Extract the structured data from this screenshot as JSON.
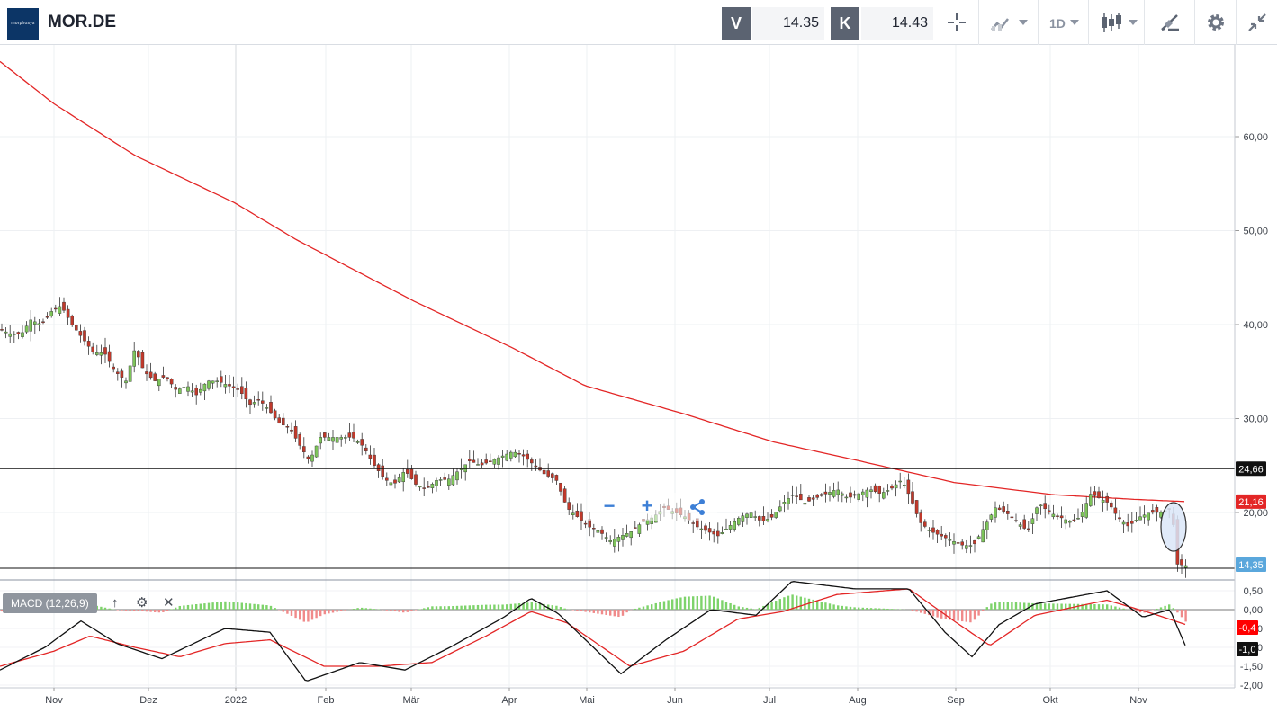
{
  "toolbar": {
    "logo_text": "morphosys",
    "symbol": "MOR.DE",
    "bid_label": "V",
    "bid_value": "14.35",
    "ask_label": "K",
    "ask_value": "14.43",
    "interval_label": "1D",
    "icons": [
      "crosshair-icon",
      "chart-type-icon",
      "candlestick-icon",
      "drawing-icon",
      "gear-icon",
      "collapse-icon"
    ]
  },
  "macd_panel": {
    "label": "MACD (12,26,9)",
    "icons": [
      "arrow-up-icon",
      "gear-icon",
      "close-icon"
    ],
    "axis_ticks": [
      "0,50",
      "0,00",
      "-0,50",
      "-1,00",
      "-1,50",
      "-2,00"
    ],
    "macd_label": "-1,0",
    "signal_label": "-0,4"
  },
  "chart_data": {
    "type": "candlestick",
    "symbol": "MOR.DE",
    "ylim": [
      10.5,
      69
    ],
    "y_ticks": [
      "30,00",
      "40,00",
      "50,00",
      "60,00",
      "20,00"
    ],
    "x_ticks": [
      "Nov",
      "Dez",
      "2022",
      "Feb",
      "Mär",
      "Apr",
      "Mai",
      "Jun",
      "Jul",
      "Aug",
      "Sep",
      "Okt",
      "Nov"
    ],
    "horizontal_lines": [
      {
        "value": 24.66,
        "label": "24,66"
      },
      {
        "value": 14.0,
        "label": ""
      }
    ],
    "ma_label": "21,16",
    "last_price_label": "14,35",
    "colors": {
      "up": "#7dc45a",
      "down": "#c0392b",
      "ma": "#e32626",
      "macd": "#111111",
      "signal": "#e32626",
      "price_tag": "#5aa7dc"
    },
    "price_anchors": [
      [
        0,
        39.5
      ],
      [
        12,
        39
      ],
      [
        24,
        39
      ],
      [
        34,
        40.5
      ],
      [
        46,
        40
      ],
      [
        58,
        41.5
      ],
      [
        68,
        42
      ],
      [
        80,
        40
      ],
      [
        92,
        38.5
      ],
      [
        104,
        37
      ],
      [
        116,
        37
      ],
      [
        128,
        35
      ],
      [
        140,
        34
      ],
      [
        150,
        37.5
      ],
      [
        160,
        35
      ],
      [
        172,
        34
      ],
      [
        184,
        34.5
      ],
      [
        196,
        33
      ],
      [
        208,
        33.5
      ],
      [
        218,
        32.5
      ],
      [
        230,
        34
      ],
      [
        242,
        34
      ],
      [
        254,
        33.5
      ],
      [
        266,
        33
      ],
      [
        278,
        31.5
      ],
      [
        288,
        32
      ],
      [
        298,
        31
      ],
      [
        310,
        29.5
      ],
      [
        322,
        29
      ],
      [
        334,
        27
      ],
      [
        344,
        25.5
      ],
      [
        356,
        28
      ],
      [
        368,
        28
      ],
      [
        380,
        28
      ],
      [
        392,
        28
      ],
      [
        404,
        27
      ],
      [
        416,
        25
      ],
      [
        428,
        23.5
      ],
      [
        438,
        23
      ],
      [
        450,
        24.5
      ],
      [
        462,
        23
      ],
      [
        474,
        22.5
      ],
      [
        486,
        23.5
      ],
      [
        498,
        23.5
      ],
      [
        510,
        24.5
      ],
      [
        522,
        25.5
      ],
      [
        534,
        25
      ],
      [
        546,
        25.5
      ],
      [
        558,
        26
      ],
      [
        570,
        26.5
      ],
      [
        582,
        26
      ],
      [
        594,
        25
      ],
      [
        606,
        24
      ],
      [
        618,
        23.5
      ],
      [
        630,
        20.5
      ],
      [
        642,
        19.5
      ],
      [
        654,
        18.5
      ],
      [
        666,
        18
      ],
      [
        678,
        17
      ],
      [
        690,
        17.5
      ],
      [
        702,
        18
      ],
      [
        714,
        19
      ],
      [
        726,
        19.5
      ],
      [
        738,
        20.5
      ],
      [
        750,
        20
      ],
      [
        762,
        19.5
      ],
      [
        774,
        18.5
      ],
      [
        786,
        18
      ],
      [
        798,
        17.5
      ],
      [
        810,
        18.5
      ],
      [
        822,
        19.5
      ],
      [
        834,
        20
      ],
      [
        846,
        19
      ],
      [
        858,
        19.5
      ],
      [
        870,
        21
      ],
      [
        882,
        22
      ],
      [
        894,
        21
      ],
      [
        906,
        21.5
      ],
      [
        918,
        22
      ],
      [
        930,
        22.5
      ],
      [
        942,
        21.5
      ],
      [
        954,
        22
      ],
      [
        966,
        22.5
      ],
      [
        978,
        22
      ],
      [
        990,
        22.5
      ],
      [
        1002,
        23.5
      ],
      [
        1012,
        21.5
      ],
      [
        1022,
        19
      ],
      [
        1034,
        18
      ],
      [
        1046,
        17.5
      ],
      [
        1058,
        17
      ],
      [
        1070,
        16.5
      ],
      [
        1082,
        16.5
      ],
      [
        1094,
        18.5
      ],
      [
        1106,
        20.5
      ],
      [
        1118,
        20
      ],
      [
        1130,
        19
      ],
      [
        1142,
        18
      ],
      [
        1154,
        21
      ],
      [
        1166,
        20
      ],
      [
        1178,
        19.5
      ],
      [
        1190,
        19
      ],
      [
        1200,
        19.5
      ],
      [
        1212,
        22
      ],
      [
        1222,
        21.5
      ],
      [
        1232,
        21
      ],
      [
        1242,
        19.5
      ],
      [
        1254,
        18.5
      ],
      [
        1266,
        19.5
      ],
      [
        1278,
        20
      ],
      [
        1290,
        20
      ],
      [
        1302,
        20.5
      ],
      [
        1308,
        14.5
      ],
      [
        1318,
        14.35
      ]
    ],
    "ma_anchors": [
      [
        0,
        68
      ],
      [
        60,
        63.5
      ],
      [
        150,
        58
      ],
      [
        260,
        53
      ],
      [
        330,
        49
      ],
      [
        460,
        42.5
      ],
      [
        570,
        37.5
      ],
      [
        650,
        33.5
      ],
      [
        760,
        30.5
      ],
      [
        860,
        27.5
      ],
      [
        950,
        25.6
      ],
      [
        1060,
        23.2
      ],
      [
        1170,
        21.9
      ],
      [
        1260,
        21.4
      ],
      [
        1318,
        21.16
      ]
    ],
    "macd_anchors": [
      [
        0,
        -1.6
      ],
      [
        50,
        -1.0
      ],
      [
        90,
        -0.3
      ],
      [
        130,
        -0.9
      ],
      [
        180,
        -1.3
      ],
      [
        250,
        -0.5
      ],
      [
        300,
        -0.6
      ],
      [
        340,
        -1.9
      ],
      [
        400,
        -1.4
      ],
      [
        450,
        -1.6
      ],
      [
        500,
        -1.0
      ],
      [
        560,
        -0.2
      ],
      [
        590,
        0.3
      ],
      [
        620,
        -0.1
      ],
      [
        690,
        -1.7
      ],
      [
        740,
        -0.8
      ],
      [
        790,
        0.0
      ],
      [
        840,
        -0.15
      ],
      [
        880,
        0.75
      ],
      [
        950,
        0.55
      ],
      [
        1010,
        0.55
      ],
      [
        1050,
        -0.6
      ],
      [
        1080,
        -1.25
      ],
      [
        1110,
        -0.4
      ],
      [
        1150,
        0.15
      ],
      [
        1230,
        0.5
      ],
      [
        1270,
        -0.2
      ],
      [
        1300,
        0.0
      ],
      [
        1318,
        -1.0
      ]
    ],
    "signal_anchors": [
      [
        0,
        -1.5
      ],
      [
        60,
        -1.1
      ],
      [
        100,
        -0.7
      ],
      [
        150,
        -1.0
      ],
      [
        200,
        -1.25
      ],
      [
        250,
        -0.9
      ],
      [
        300,
        -0.8
      ],
      [
        360,
        -1.5
      ],
      [
        420,
        -1.5
      ],
      [
        480,
        -1.4
      ],
      [
        540,
        -0.7
      ],
      [
        590,
        -0.05
      ],
      [
        630,
        -0.35
      ],
      [
        700,
        -1.5
      ],
      [
        760,
        -1.1
      ],
      [
        820,
        -0.25
      ],
      [
        870,
        -0.05
      ],
      [
        930,
        0.4
      ],
      [
        1010,
        0.55
      ],
      [
        1060,
        -0.3
      ],
      [
        1100,
        -0.95
      ],
      [
        1150,
        -0.15
      ],
      [
        1230,
        0.25
      ],
      [
        1280,
        -0.1
      ],
      [
        1318,
        -0.4
      ]
    ]
  }
}
